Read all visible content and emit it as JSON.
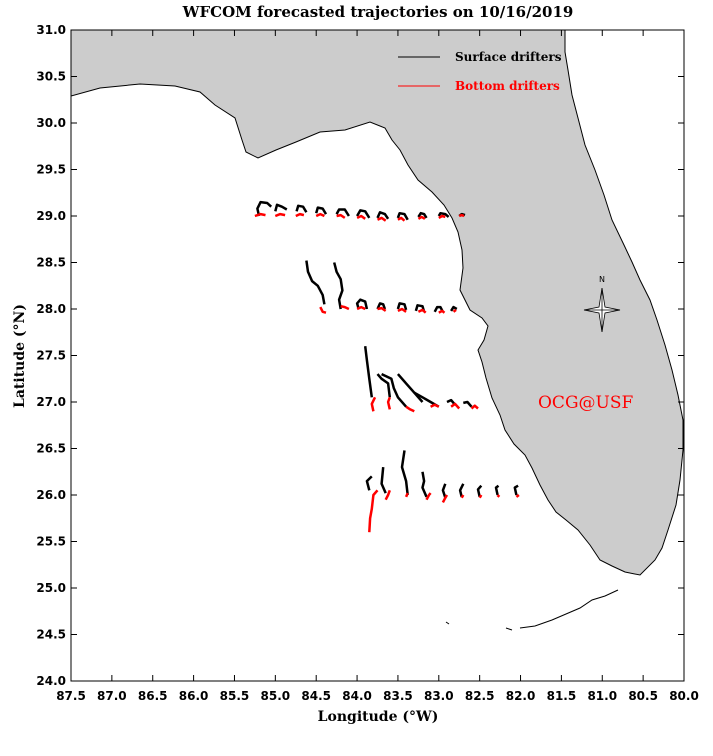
{
  "map": {
    "title": "WFCOM forecasted trajectories on 10/16/2019",
    "xlabel": "Longitude (°W)",
    "ylabel": "Latitude (°N)",
    "credit": "OCG@USF",
    "compass_label": "N",
    "legend": [
      {
        "label": "Surface drifters",
        "color": "#000000"
      },
      {
        "label": "Bottom drifters",
        "color": "#ff0000"
      }
    ],
    "colors": {
      "land": "#cccccc",
      "coast": "#000000",
      "surface": "#000000",
      "bottom": "#ff0000",
      "credit": "#ff0000"
    }
  },
  "chart_data": {
    "type": "map-trajectories",
    "xlim": [
      87.5,
      80.0
    ],
    "ylim": [
      24.0,
      31.0
    ],
    "x_ticks": [
      "87.5",
      "87.0",
      "86.5",
      "86.0",
      "85.5",
      "85.0",
      "84.5",
      "84.0",
      "83.5",
      "83.0",
      "82.5",
      "82.0",
      "81.5",
      "81.0",
      "80.5",
      "80.0"
    ],
    "y_ticks": [
      "24.0",
      "24.5",
      "25.0",
      "25.5",
      "26.0",
      "26.5",
      "27.0",
      "27.5",
      "28.0",
      "28.5",
      "29.0",
      "29.5",
      "30.0",
      "30.5",
      "31.0"
    ],
    "surface_tracks": [
      [
        [
          85.2,
          29.0
        ],
        [
          85.22,
          29.08
        ],
        [
          85.18,
          29.15
        ],
        [
          85.1,
          29.14
        ],
        [
          85.05,
          29.1
        ]
      ],
      [
        [
          85.0,
          29.05
        ],
        [
          84.98,
          29.12
        ],
        [
          84.92,
          29.1
        ],
        [
          84.86,
          29.07
        ]
      ],
      [
        [
          84.74,
          29.05
        ],
        [
          84.72,
          29.11
        ],
        [
          84.66,
          29.1
        ],
        [
          84.62,
          29.04
        ]
      ],
      [
        [
          84.5,
          29.03
        ],
        [
          84.48,
          29.09
        ],
        [
          84.42,
          29.08
        ],
        [
          84.38,
          29.02
        ]
      ],
      [
        [
          84.25,
          29.02
        ],
        [
          84.22,
          29.07
        ],
        [
          84.15,
          29.07
        ],
        [
          84.1,
          29.0
        ]
      ],
      [
        [
          84.0,
          29.0
        ],
        [
          83.96,
          29.06
        ],
        [
          83.9,
          29.05
        ],
        [
          83.85,
          28.98
        ]
      ],
      [
        [
          83.75,
          28.98
        ],
        [
          83.72,
          29.04
        ],
        [
          83.66,
          29.02
        ],
        [
          83.62,
          28.97
        ]
      ],
      [
        [
          83.5,
          28.98
        ],
        [
          83.48,
          29.03
        ],
        [
          83.42,
          29.02
        ],
        [
          83.38,
          28.96
        ]
      ],
      [
        [
          83.25,
          28.99
        ],
        [
          83.22,
          29.03
        ],
        [
          83.18,
          29.02
        ],
        [
          83.15,
          28.98
        ]
      ],
      [
        [
          83.0,
          29.0
        ],
        [
          82.98,
          29.03
        ],
        [
          82.92,
          29.02
        ],
        [
          82.88,
          28.99
        ]
      ],
      [
        [
          82.75,
          29.0
        ],
        [
          82.72,
          29.02
        ],
        [
          82.68,
          29.01
        ]
      ],
      [
        [
          84.4,
          28.05
        ],
        [
          84.42,
          28.15
        ],
        [
          84.48,
          28.25
        ],
        [
          84.55,
          28.3
        ],
        [
          84.6,
          28.4
        ],
        [
          84.62,
          28.52
        ]
      ],
      [
        [
          84.2,
          28.0
        ],
        [
          84.22,
          28.1
        ],
        [
          84.18,
          28.2
        ],
        [
          84.2,
          28.32
        ],
        [
          84.25,
          28.4
        ],
        [
          84.28,
          28.5
        ]
      ],
      [
        [
          83.98,
          28.0
        ],
        [
          84.0,
          28.06
        ],
        [
          83.96,
          28.1
        ],
        [
          83.9,
          28.08
        ],
        [
          83.88,
          28.0
        ]
      ],
      [
        [
          83.75,
          28.0
        ],
        [
          83.72,
          28.06
        ],
        [
          83.68,
          28.05
        ],
        [
          83.66,
          28.0
        ]
      ],
      [
        [
          83.5,
          28.0
        ],
        [
          83.48,
          28.06
        ],
        [
          83.42,
          28.05
        ],
        [
          83.4,
          27.99
        ]
      ],
      [
        [
          83.28,
          27.98
        ],
        [
          83.26,
          28.04
        ],
        [
          83.2,
          28.03
        ],
        [
          83.18,
          27.97
        ]
      ],
      [
        [
          83.05,
          27.97
        ],
        [
          83.02,
          28.02
        ],
        [
          82.98,
          28.02
        ],
        [
          82.95,
          27.97
        ]
      ],
      [
        [
          82.85,
          27.98
        ],
        [
          82.82,
          28.02
        ],
        [
          82.78,
          28.0
        ]
      ],
      [
        [
          83.82,
          27.05
        ],
        [
          83.85,
          27.25
        ],
        [
          83.88,
          27.45
        ],
        [
          83.9,
          27.6
        ]
      ],
      [
        [
          83.6,
          27.05
        ],
        [
          83.62,
          27.2
        ],
        [
          83.7,
          27.25
        ],
        [
          83.75,
          27.3
        ]
      ],
      [
        [
          83.4,
          26.95
        ],
        [
          83.5,
          27.05
        ],
        [
          83.55,
          27.15
        ],
        [
          83.58,
          27.25
        ],
        [
          83.7,
          27.3
        ]
      ],
      [
        [
          83.2,
          27.0
        ],
        [
          83.3,
          27.1
        ],
        [
          83.4,
          27.2
        ],
        [
          83.5,
          27.3
        ]
      ],
      [
        [
          83.0,
          26.95
        ],
        [
          83.1,
          27.0
        ],
        [
          83.2,
          27.05
        ],
        [
          83.3,
          27.1
        ]
      ],
      [
        [
          82.8,
          26.97
        ],
        [
          82.85,
          27.02
        ],
        [
          82.9,
          27.0
        ]
      ],
      [
        [
          82.6,
          26.95
        ],
        [
          82.65,
          27.0
        ],
        [
          82.7,
          26.99
        ]
      ],
      [
        [
          83.85,
          26.05
        ],
        [
          83.88,
          26.15
        ],
        [
          83.82,
          26.2
        ]
      ],
      [
        [
          83.65,
          26.02
        ],
        [
          83.7,
          26.12
        ],
        [
          83.68,
          26.3
        ]
      ],
      [
        [
          83.38,
          26.0
        ],
        [
          83.4,
          26.15
        ],
        [
          83.45,
          26.3
        ],
        [
          83.42,
          26.48
        ]
      ],
      [
        [
          83.15,
          25.98
        ],
        [
          83.2,
          26.08
        ],
        [
          83.18,
          26.15
        ],
        [
          83.2,
          26.25
        ]
      ],
      [
        [
          82.92,
          25.97
        ],
        [
          82.95,
          26.05
        ],
        [
          82.92,
          26.12
        ]
      ],
      [
        [
          82.72,
          25.98
        ],
        [
          82.74,
          26.05
        ],
        [
          82.7,
          26.12
        ]
      ],
      [
        [
          82.5,
          25.98
        ],
        [
          82.52,
          26.06
        ],
        [
          82.48,
          26.1
        ]
      ],
      [
        [
          82.28,
          26.0
        ],
        [
          82.3,
          26.08
        ],
        [
          82.27,
          26.1
        ]
      ],
      [
        [
          82.05,
          26.0
        ],
        [
          82.07,
          26.08
        ],
        [
          82.03,
          26.1
        ]
      ]
    ],
    "bottom_tracks": [
      [
        [
          85.25,
          29.0
        ],
        [
          85.18,
          29.02
        ],
        [
          85.12,
          29.01
        ]
      ],
      [
        [
          85.0,
          29.0
        ],
        [
          84.94,
          29.02
        ],
        [
          84.88,
          29.01
        ]
      ],
      [
        [
          84.75,
          29.0
        ],
        [
          84.7,
          29.02
        ],
        [
          84.65,
          29.01
        ]
      ],
      [
        [
          84.5,
          29.0
        ],
        [
          84.45,
          29.02
        ],
        [
          84.4,
          29.0
        ]
      ],
      [
        [
          84.25,
          29.0
        ],
        [
          84.2,
          29.01
        ],
        [
          84.15,
          28.98
        ]
      ],
      [
        [
          84.0,
          28.98
        ],
        [
          83.95,
          29.0
        ],
        [
          83.9,
          28.97
        ]
      ],
      [
        [
          83.75,
          28.96
        ],
        [
          83.7,
          28.98
        ],
        [
          83.65,
          28.95
        ]
      ],
      [
        [
          83.5,
          28.96
        ],
        [
          83.46,
          28.98
        ],
        [
          83.42,
          28.95
        ]
      ],
      [
        [
          83.25,
          28.97
        ],
        [
          83.21,
          28.99
        ],
        [
          83.17,
          28.97
        ]
      ],
      [
        [
          83.0,
          28.98
        ],
        [
          82.96,
          29.0
        ],
        [
          82.92,
          28.99
        ]
      ],
      [
        [
          82.75,
          29.0
        ],
        [
          82.72,
          29.01
        ],
        [
          82.69,
          29.0
        ]
      ],
      [
        [
          84.45,
          28.02
        ],
        [
          84.42,
          27.97
        ],
        [
          84.38,
          27.96
        ]
      ],
      [
        [
          84.2,
          28.03
        ],
        [
          84.15,
          28.02
        ],
        [
          84.1,
          28.0
        ]
      ],
      [
        [
          84.0,
          28.0
        ],
        [
          83.95,
          28.02
        ],
        [
          83.9,
          28.0
        ]
      ],
      [
        [
          83.75,
          28.0
        ],
        [
          83.7,
          28.01
        ],
        [
          83.65,
          27.98
        ]
      ],
      [
        [
          83.5,
          27.98
        ],
        [
          83.45,
          28.0
        ],
        [
          83.4,
          27.97
        ]
      ],
      [
        [
          83.25,
          27.97
        ],
        [
          83.2,
          27.99
        ],
        [
          83.16,
          27.96
        ]
      ],
      [
        [
          83.0,
          27.96
        ],
        [
          82.96,
          27.98
        ],
        [
          82.93,
          27.96
        ]
      ],
      [
        [
          82.82,
          27.97
        ],
        [
          82.79,
          27.99
        ]
      ],
      [
        [
          83.8,
          26.9
        ],
        [
          83.82,
          26.98
        ],
        [
          83.78,
          27.05
        ]
      ],
      [
        [
          83.6,
          26.92
        ],
        [
          83.62,
          27.0
        ],
        [
          83.6,
          27.05
        ]
      ],
      [
        [
          83.4,
          26.95
        ],
        [
          83.35,
          26.92
        ],
        [
          83.3,
          26.9
        ]
      ],
      [
        [
          83.1,
          26.95
        ],
        [
          83.05,
          26.97
        ],
        [
          83.0,
          26.95
        ]
      ],
      [
        [
          82.85,
          26.95
        ],
        [
          82.8,
          26.98
        ],
        [
          82.75,
          26.93
        ]
      ],
      [
        [
          82.6,
          26.93
        ],
        [
          82.56,
          26.96
        ],
        [
          82.52,
          26.93
        ]
      ],
      [
        [
          83.85,
          25.6
        ],
        [
          83.84,
          25.75
        ],
        [
          83.82,
          25.85
        ],
        [
          83.8,
          26.0
        ],
        [
          83.75,
          26.05
        ]
      ],
      [
        [
          83.65,
          25.95
        ],
        [
          83.62,
          26.0
        ],
        [
          83.6,
          26.05
        ]
      ],
      [
        [
          83.4,
          25.98
        ],
        [
          83.38,
          26.02
        ]
      ],
      [
        [
          83.15,
          25.95
        ],
        [
          83.12,
          26.0
        ],
        [
          83.1,
          26.02
        ]
      ],
      [
        [
          82.95,
          25.92
        ],
        [
          82.92,
          25.97
        ],
        [
          82.9,
          26.0
        ]
      ],
      [
        [
          82.72,
          25.97
        ],
        [
          82.7,
          26.0
        ]
      ],
      [
        [
          82.5,
          25.97
        ],
        [
          82.48,
          26.0
        ]
      ],
      [
        [
          82.28,
          25.98
        ],
        [
          82.26,
          26.0
        ]
      ],
      [
        [
          82.05,
          25.98
        ],
        [
          82.02,
          26.0
        ]
      ]
    ]
  }
}
